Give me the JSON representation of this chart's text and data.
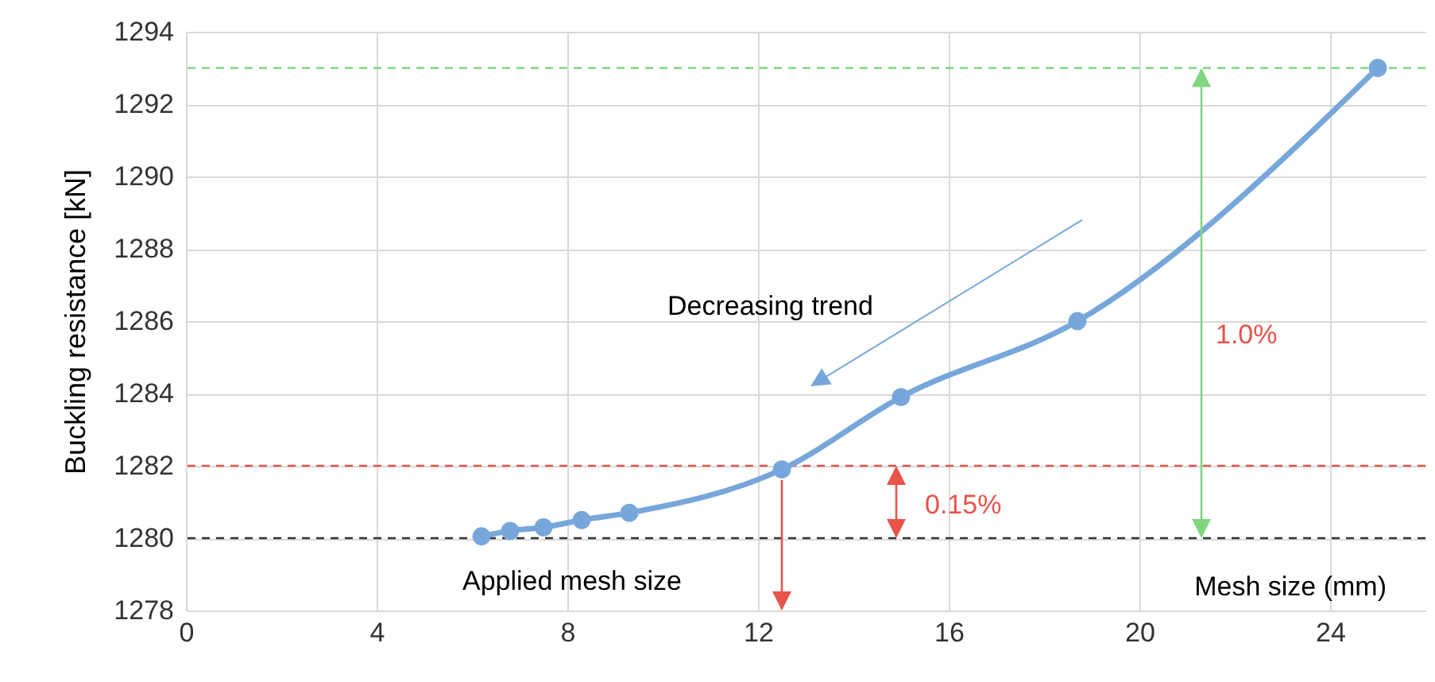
{
  "chart_data": {
    "type": "line",
    "xlabel": "Mesh size (mm)",
    "ylabel": "Buckling resistance [kN]",
    "x": [
      6.2,
      6.8,
      7.5,
      8.3,
      9.3,
      12.5,
      15,
      18.7,
      25
    ],
    "series": [
      {
        "color": "#77a7da",
        "values": [
          1280.05,
          1280.2,
          1280.3,
          1280.5,
          1280.7,
          1281.9,
          1283.9,
          1286,
          1293
        ]
      }
    ],
    "xlim": [
      0,
      26
    ],
    "xticks": [
      0,
      4,
      8,
      12,
      16,
      20,
      24
    ],
    "ylim": [
      1278,
      1294
    ],
    "yticks": [
      1278,
      1280,
      1282,
      1284,
      1286,
      1288,
      1290,
      1292,
      1294
    ],
    "grid": true,
    "marker": "circle",
    "line_style": "solid",
    "ref_lines": [
      {
        "axis": "y",
        "value": 1293,
        "color": "#7fd67f",
        "line_style": "dashed"
      },
      {
        "axis": "y",
        "value": 1282,
        "color": "#e8534a",
        "line_style": "dashed"
      },
      {
        "axis": "y",
        "value": 1280,
        "color": "#333333",
        "line_style": "dashed"
      }
    ],
    "annotations": [
      "Decreasing trend",
      "1.0%",
      "0.15%",
      "Applied mesh size"
    ]
  }
}
